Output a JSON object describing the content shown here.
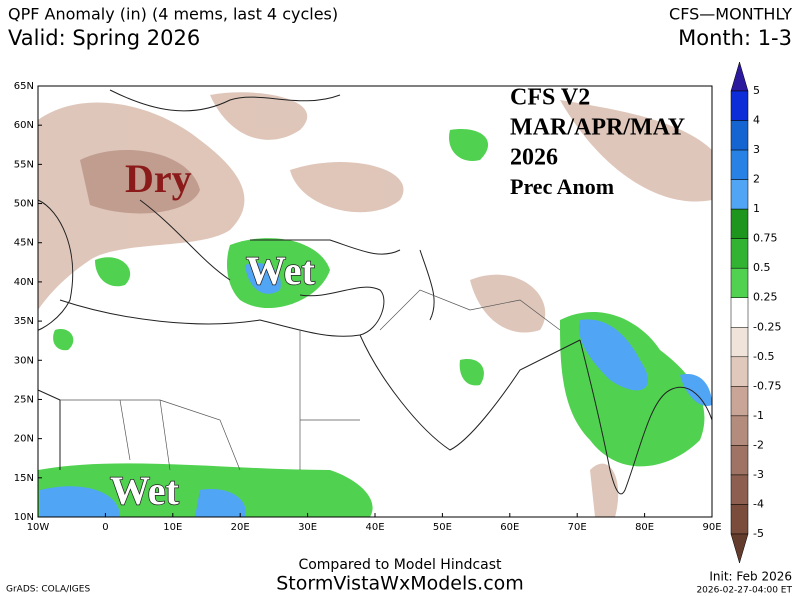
{
  "header": {
    "title": "QPF Anomaly (in) (4 mems, last 4 cycles)",
    "valid": "Valid: Spring 2026",
    "model": "CFS—MONTHLY",
    "month": "Month: 1-3"
  },
  "overlay": {
    "lines": [
      "CFS V2",
      "MAR/APR/MAY",
      "2026",
      "Prec Anom"
    ],
    "dry": "Dry",
    "wet_north": "Wet",
    "wet_south": "Wet"
  },
  "map": {
    "lat_labels": [
      "65N",
      "60N",
      "55N",
      "50N",
      "45N",
      "40N",
      "35N",
      "30N",
      "25N",
      "20N",
      "15N",
      "10N"
    ],
    "lon_labels": [
      "10W",
      "0",
      "10E",
      "20E",
      "30E",
      "40E",
      "50E",
      "60E",
      "70E",
      "80E",
      "90E"
    ]
  },
  "colorbar": {
    "labels": [
      "5",
      "4",
      "3",
      "2",
      "1",
      "0.75",
      "0.5",
      "0.25",
      "-0.25",
      "-0.5",
      "-0.75",
      "-1",
      "-2",
      "-3",
      "-4",
      "-5"
    ],
    "colors": [
      "#2c1a9e",
      "#0c2dd8",
      "#1464d2",
      "#2882e6",
      "#50a5f5",
      "#1e961e",
      "#32b432",
      "#50d250",
      "#ffffff",
      "#f0e4da",
      "#e1c8bc",
      "#c8a596",
      "#b48c7d",
      "#a07464",
      "#8c5f50",
      "#7a4c3c",
      "#643c2d"
    ]
  },
  "footer": {
    "compared": "Compared to Model Hindcast",
    "site": "StormVistaWxModels.com",
    "grads": "GrADS: COLA/IGES",
    "init": "Init: Feb 2026",
    "stamp": "2026-02-27-04:00 ET"
  }
}
